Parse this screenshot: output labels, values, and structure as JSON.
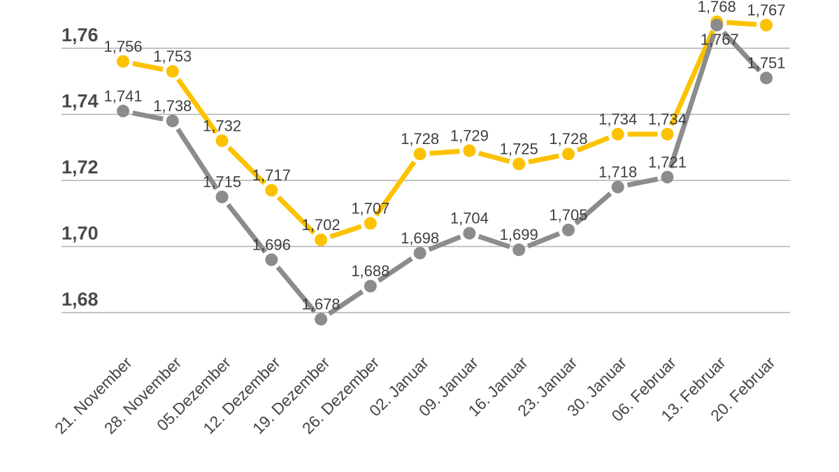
{
  "chart_data": {
    "type": "line",
    "title": "",
    "categories": [
      "21. November",
      "28. November",
      "05.Dezember",
      "12. Dezember",
      "19. Dezember",
      "26. Dezember",
      "02. Januar",
      "09. Januar",
      "16. Januar",
      "23. Januar",
      "30. Januar",
      "06. Februar",
      "13. Februar",
      "20. Februar"
    ],
    "series": [
      {
        "name": "series-yellow",
        "color": "#FCC200",
        "values": [
          1.756,
          1.753,
          1.732,
          1.717,
          1.702,
          1.707,
          1.728,
          1.729,
          1.725,
          1.728,
          1.734,
          1.734,
          1.768,
          1.767
        ],
        "point_labels": [
          "1,756",
          "1,753",
          "1,732",
          "1,717",
          "1,702",
          "1,707",
          "1,728",
          "1,729",
          "1,725",
          "1,728",
          "1,734",
          "1,734",
          "1,768",
          "1,767"
        ]
      },
      {
        "name": "series-gray",
        "color": "#8C8C8C",
        "values": [
          1.741,
          1.738,
          1.715,
          1.696,
          1.678,
          1.688,
          1.698,
          1.704,
          1.699,
          1.705,
          1.718,
          1.721,
          1.767,
          1.751
        ],
        "point_labels": [
          "1,741",
          "1,738",
          "1,715",
          "1,696",
          "1,678",
          "1,688",
          "1,698",
          "1,704",
          "1,699",
          "1,705",
          "1,718",
          "1,721",
          "1,767",
          "1,751"
        ]
      }
    ],
    "y_axis": {
      "ticks": [
        {
          "v": 1.76,
          "label": "1,76"
        },
        {
          "v": 1.74,
          "label": "1,74"
        },
        {
          "v": 1.72,
          "label": "1,72"
        },
        {
          "v": 1.7,
          "label": "1,70"
        },
        {
          "v": 1.68,
          "label": "1,68"
        }
      ],
      "range": [
        1.668,
        1.772
      ]
    },
    "grid": true,
    "legend_position": "none",
    "x_label_rotation_deg": -45,
    "label_overrides": {
      "series-gray": {
        "12": {
          "dx": 4,
          "dy": 28
        }
      }
    }
  },
  "canvas": {
    "background": "#FFFFFF",
    "grid_color": "#B0B0B0",
    "point_label_color": "#3E3E3E",
    "axis_label_color": "#4A4A4A"
  }
}
